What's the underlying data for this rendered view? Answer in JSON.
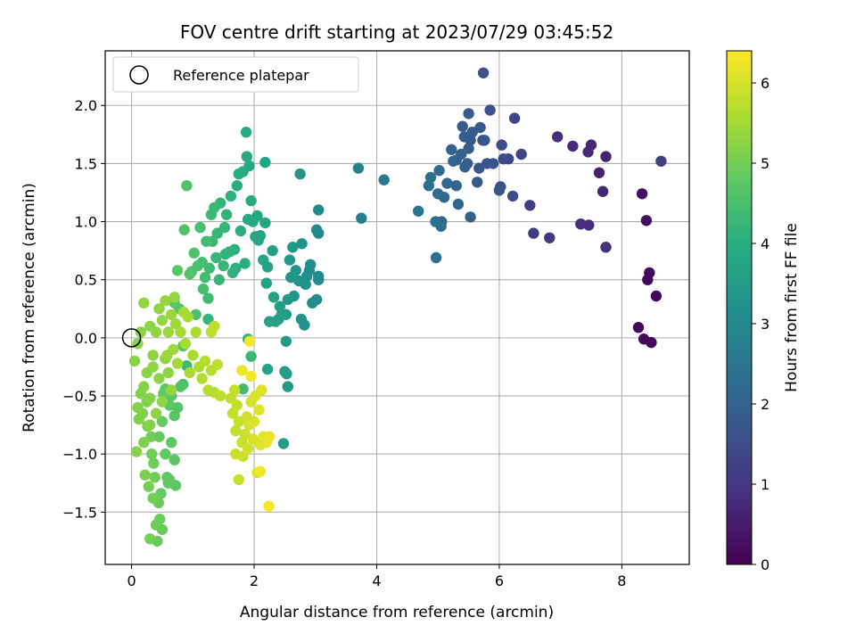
{
  "chart_data": {
    "type": "scatter",
    "title": "FOV centre drift starting at 2023/07/29 03:45:52",
    "xlabel": "Angular distance from reference (arcmin)",
    "ylabel": "Rotation from reference (arcmin)",
    "xlim": [
      -0.43,
      9.1
    ],
    "ylim": [
      -1.95,
      2.47
    ],
    "xticks": [
      0,
      2,
      4,
      6,
      8
    ],
    "yticks": [
      -1.5,
      -1.0,
      -0.5,
      0.0,
      0.5,
      1.0,
      1.5,
      2.0
    ],
    "xtick_labels": [
      "0",
      "2",
      "4",
      "6",
      "8"
    ],
    "ytick_labels": [
      "−1.5",
      "−1.0",
      "−0.5",
      "0.0",
      "0.5",
      "1.0",
      "1.5",
      "2.0"
    ],
    "grid": true,
    "legend": {
      "placement": "top-left",
      "entries": [
        "Reference platepar"
      ]
    },
    "reference_point": {
      "x": 0.0,
      "y": 0.0
    },
    "colorbar": {
      "label": "Hours from first FF file",
      "range": [
        0,
        6.4
      ],
      "ticks": [
        0,
        1,
        2,
        3,
        4,
        5,
        6
      ],
      "tick_labels": [
        "0",
        "1",
        "2",
        "3",
        "4",
        "5",
        "6"
      ],
      "colormap": "viridis"
    },
    "points": [
      [
        8.64,
        1.52,
        1.25
      ],
      [
        8.48,
        -0.04,
        0.1
      ],
      [
        8.56,
        0.36,
        0.1
      ],
      [
        8.36,
        -0.01,
        0.1
      ],
      [
        8.27,
        0.09,
        0.15
      ],
      [
        8.45,
        0.56,
        0.15
      ],
      [
        8.42,
        0.5,
        0.15
      ],
      [
        8.4,
        1.01,
        0.25
      ],
      [
        8.33,
        1.24,
        0.3
      ],
      [
        7.74,
        1.56,
        0.6
      ],
      [
        7.69,
        1.26,
        0.65
      ],
      [
        7.63,
        1.42,
        0.6
      ],
      [
        7.5,
        1.66,
        0.7
      ],
      [
        7.45,
        1.6,
        0.75
      ],
      [
        7.46,
        0.97,
        0.8
      ],
      [
        7.33,
        0.98,
        0.85
      ],
      [
        7.2,
        1.65,
        0.75
      ],
      [
        6.95,
        1.73,
        0.8
      ],
      [
        7.74,
        0.78,
        0.9
      ],
      [
        6.82,
        0.86,
        1.0
      ],
      [
        6.56,
        0.9,
        1.1
      ],
      [
        6.5,
        1.14,
        1.2
      ],
      [
        6.36,
        1.58,
        1.3
      ],
      [
        6.25,
        1.89,
        1.35
      ],
      [
        6.15,
        1.54,
        1.4
      ],
      [
        6.07,
        1.54,
        1.45
      ],
      [
        6.04,
        1.66,
        1.5
      ],
      [
        6.02,
        1.3,
        1.6
      ],
      [
        6.22,
        1.22,
        1.5
      ],
      [
        5.85,
        1.96,
        1.55
      ],
      [
        5.8,
        1.5,
        1.6
      ],
      [
        5.73,
        1.7,
        1.65
      ],
      [
        5.74,
        2.28,
        1.6
      ],
      [
        5.67,
        1.46,
        1.7
      ],
      [
        5.64,
        1.34,
        1.75
      ],
      [
        5.69,
        1.81,
        1.75
      ],
      [
        5.76,
        1.7,
        1.7
      ],
      [
        5.9,
        1.5,
        1.7
      ],
      [
        6.0,
        1.27,
        1.7
      ],
      [
        5.56,
        1.77,
        1.8
      ],
      [
        5.5,
        1.93,
        1.8
      ],
      [
        5.53,
        1.7,
        1.8
      ],
      [
        5.5,
        1.63,
        1.85
      ],
      [
        5.4,
        1.82,
        1.85
      ],
      [
        5.48,
        1.5,
        1.9
      ],
      [
        5.43,
        1.73,
        1.9
      ],
      [
        5.44,
        1.47,
        1.95
      ],
      [
        5.38,
        1.58,
        1.95
      ],
      [
        5.53,
        1.04,
        1.95
      ],
      [
        5.3,
        1.53,
        2.0
      ],
      [
        5.25,
        1.52,
        2.05
      ],
      [
        5.3,
        1.31,
        2.05
      ],
      [
        5.22,
        1.62,
        2.05
      ],
      [
        5.33,
        1.15,
        2.1
      ],
      [
        5.15,
        1.33,
        2.1
      ],
      [
        5.06,
        1.0,
        2.15
      ],
      [
        5.1,
        1.21,
        2.15
      ],
      [
        5.05,
        0.96,
        2.2
      ],
      [
        5.0,
        1.24,
        2.2
      ],
      [
        5.02,
        1.44,
        2.25
      ],
      [
        4.96,
        1.0,
        2.3
      ],
      [
        4.88,
        1.38,
        2.35
      ],
      [
        4.85,
        1.31,
        2.35
      ],
      [
        4.97,
        0.69,
        2.4
      ],
      [
        4.68,
        1.09,
        2.45
      ],
      [
        4.12,
        1.36,
        2.6
      ],
      [
        3.75,
        1.03,
        2.7
      ],
      [
        3.7,
        1.46,
        2.75
      ],
      [
        3.05,
        1.1,
        3.0
      ],
      [
        3.02,
        0.93,
        3.05
      ],
      [
        3.05,
        0.9,
        3.0
      ],
      [
        3.05,
        0.5,
        3.05
      ],
      [
        3.05,
        0.53,
        3.05
      ],
      [
        3.02,
        0.33,
        3.1
      ],
      [
        2.95,
        0.3,
        3.1
      ],
      [
        2.92,
        0.63,
        3.15
      ],
      [
        2.9,
        0.58,
        3.1
      ],
      [
        2.86,
        0.53,
        3.2
      ],
      [
        2.84,
        0.46,
        3.25
      ],
      [
        2.82,
        0.11,
        3.2
      ],
      [
        2.77,
        0.16,
        3.3
      ],
      [
        2.73,
        0.49,
        3.3
      ],
      [
        2.68,
        0.58,
        3.35
      ],
      [
        2.65,
        0.36,
        3.35
      ],
      [
        2.6,
        0.52,
        3.35
      ],
      [
        2.78,
        0.81,
        3.3
      ],
      [
        2.75,
        1.41,
        3.35
      ],
      [
        2.63,
        0.78,
        3.4
      ],
      [
        2.58,
        0.67,
        3.4
      ],
      [
        2.55,
        0.33,
        3.45
      ],
      [
        2.52,
        0.2,
        3.45
      ],
      [
        2.55,
        -0.42,
        3.45
      ],
      [
        2.53,
        -0.31,
        3.5
      ],
      [
        2.5,
        -0.29,
        3.5
      ],
      [
        2.52,
        -0.03,
        3.45
      ],
      [
        2.48,
        -0.91,
        3.5
      ],
      [
        2.45,
        0.2,
        3.55
      ],
      [
        2.42,
        0.27,
        3.55
      ],
      [
        2.4,
        0.16,
        3.6
      ],
      [
        2.35,
        0.14,
        3.6
      ],
      [
        2.32,
        0.35,
        3.65
      ],
      [
        2.3,
        0.75,
        3.6
      ],
      [
        2.25,
        0.14,
        3.65
      ],
      [
        2.22,
        0.61,
        3.65
      ],
      [
        2.22,
        -0.27,
        3.7
      ],
      [
        2.2,
        0.47,
        3.7
      ],
      [
        2.18,
        1.51,
        3.7
      ],
      [
        2.18,
        0.99,
        3.75
      ],
      [
        2.15,
        0.67,
        3.75
      ],
      [
        2.1,
        0.88,
        3.75
      ],
      [
        2.07,
        0.84,
        3.8
      ],
      [
        2.05,
        1.05,
        3.8
      ],
      [
        2.02,
        0.87,
        3.8
      ],
      [
        1.98,
        1.0,
        3.85
      ],
      [
        1.95,
        1.18,
        3.85
      ],
      [
        1.92,
        1.48,
        3.9
      ],
      [
        1.9,
        1.02,
        3.9
      ],
      [
        1.88,
        1.56,
        3.9
      ],
      [
        1.87,
        1.77,
        3.9
      ],
      [
        1.85,
        0.64,
        3.95
      ],
      [
        1.82,
        1.43,
        3.95
      ],
      [
        1.78,
        0.92,
        4.0
      ],
      [
        1.75,
        1.41,
        4.0
      ],
      [
        1.72,
        1.31,
        4.0
      ],
      [
        1.7,
        0.6,
        4.05
      ],
      [
        1.68,
        0.76,
        4.05
      ],
      [
        1.65,
        0.56,
        4.1
      ],
      [
        1.62,
        1.22,
        4.1
      ],
      [
        1.6,
        0.74,
        4.1
      ],
      [
        1.55,
        1.06,
        4.15
      ],
      [
        1.53,
        0.72,
        4.15
      ],
      [
        1.52,
        0.95,
        4.2
      ],
      [
        1.5,
        0.62,
        4.2
      ],
      [
        1.45,
        1.16,
        4.2
      ],
      [
        1.43,
        0.5,
        4.25
      ],
      [
        1.4,
        0.9,
        4.25
      ],
      [
        1.38,
        0.69,
        4.25
      ],
      [
        1.35,
        1.12,
        4.3
      ],
      [
        1.32,
        0.83,
        4.3
      ],
      [
        1.3,
        1.06,
        4.3
      ],
      [
        1.27,
        0.6,
        4.35
      ],
      [
        1.25,
        0.34,
        4.35
      ],
      [
        1.22,
        0.83,
        4.4
      ],
      [
        1.2,
        0.52,
        4.4
      ],
      [
        1.17,
        0.42,
        4.45
      ],
      [
        1.15,
        0.65,
        4.45
      ],
      [
        1.12,
        0.95,
        4.45
      ],
      [
        1.08,
        0.62,
        4.5
      ],
      [
        1.05,
        0.2,
        4.5
      ],
      [
        1.02,
        0.73,
        4.55
      ],
      [
        0.98,
        0.57,
        4.55
      ],
      [
        0.95,
        0.55,
        4.6
      ],
      [
        0.9,
        1.31,
        4.6
      ],
      [
        0.86,
        0.93,
        4.6
      ],
      [
        0.84,
        -0.07,
        4.65
      ],
      [
        0.78,
        0.25,
        4.65
      ],
      [
        0.75,
        0.58,
        4.7
      ],
      [
        0.7,
        0.3,
        4.7
      ],
      [
        1.95,
        -0.16,
        4.3
      ],
      [
        1.9,
        -0.01,
        4.2
      ],
      [
        1.82,
        -0.44,
        4.4
      ],
      [
        1.25,
        0.16,
        4.2
      ],
      [
        0.9,
        -0.24,
        4.35
      ],
      [
        0.84,
        -0.4,
        4.5
      ],
      [
        0.8,
        -0.42,
        4.6
      ],
      [
        0.75,
        -0.6,
        4.65
      ],
      [
        0.7,
        -0.67,
        4.7
      ],
      [
        0.65,
        -0.5,
        4.7
      ],
      [
        0.62,
        -0.58,
        4.75
      ],
      [
        0.6,
        -1.25,
        4.8
      ],
      [
        0.58,
        -1.2,
        4.8
      ],
      [
        0.55,
        -0.44,
        4.8
      ],
      [
        0.52,
        -0.48,
        4.85
      ],
      [
        0.5,
        -0.72,
        4.85
      ],
      [
        0.48,
        -1.34,
        4.85
      ],
      [
        0.46,
        -1.56,
        4.9
      ],
      [
        0.44,
        -1.42,
        4.9
      ],
      [
        0.42,
        -1.4,
        4.9
      ],
      [
        0.4,
        -1.61,
        4.95
      ],
      [
        0.38,
        -1.2,
        4.95
      ],
      [
        0.36,
        -1.08,
        4.95
      ],
      [
        0.35,
        -1.38,
        5.0
      ],
      [
        0.33,
        -1.0,
        5.0
      ],
      [
        0.32,
        -0.85,
        5.0
      ],
      [
        0.3,
        -1.73,
        5.05
      ],
      [
        0.28,
        -1.28,
        5.05
      ],
      [
        0.26,
        -0.76,
        5.05
      ],
      [
        0.25,
        -0.55,
        5.1
      ],
      [
        0.22,
        -1.18,
        5.1
      ],
      [
        0.2,
        -0.9,
        5.1
      ],
      [
        0.18,
        -0.65,
        5.15
      ],
      [
        0.15,
        -0.48,
        5.15
      ],
      [
        0.12,
        -0.7,
        5.15
      ],
      [
        0.1,
        -0.6,
        5.2
      ],
      [
        0.08,
        -0.98,
        5.2
      ],
      [
        0.05,
        -0.2,
        5.2
      ],
      [
        0.42,
        -1.75,
        4.9
      ],
      [
        0.5,
        -1.65,
        4.9
      ],
      [
        0.65,
        -0.9,
        4.8
      ],
      [
        0.7,
        -1.05,
        4.75
      ],
      [
        0.55,
        -1.0,
        4.8
      ],
      [
        0.45,
        -0.85,
        4.85
      ],
      [
        0.62,
        -1.22,
        4.8
      ],
      [
        0.72,
        -1.27,
        4.75
      ],
      [
        0.3,
        -0.52,
        5.15
      ],
      [
        0.2,
        -0.42,
        5.2
      ],
      [
        0.25,
        -0.3,
        5.25
      ],
      [
        0.35,
        -0.15,
        5.25
      ],
      [
        0.4,
        0.05,
        5.3
      ],
      [
        0.45,
        0.25,
        5.3
      ],
      [
        0.5,
        0.15,
        5.35
      ],
      [
        0.55,
        0.32,
        5.35
      ],
      [
        0.6,
        0.05,
        5.4
      ],
      [
        0.65,
        0.2,
        5.4
      ],
      [
        0.68,
        -0.1,
        5.45
      ],
      [
        0.72,
        0.12,
        5.45
      ],
      [
        0.75,
        -0.22,
        5.5
      ],
      [
        0.8,
        0.05,
        5.5
      ],
      [
        0.85,
        0.22,
        5.5
      ],
      [
        0.88,
        -0.05,
        5.55
      ],
      [
        0.92,
        0.18,
        5.55
      ],
      [
        0.95,
        -0.3,
        5.55
      ],
      [
        1.0,
        -0.15,
        5.6
      ],
      [
        1.05,
        0.05,
        5.6
      ],
      [
        1.1,
        -0.25,
        5.6
      ],
      [
        1.15,
        -0.35,
        5.65
      ],
      [
        1.2,
        -0.2,
        5.65
      ],
      [
        1.25,
        -0.45,
        5.7
      ],
      [
        1.3,
        -0.28,
        5.7
      ],
      [
        1.35,
        -0.47,
        5.7
      ],
      [
        1.4,
        -0.23,
        5.75
      ],
      [
        1.3,
        0.05,
        5.75
      ],
      [
        1.35,
        0.1,
        5.75
      ],
      [
        1.45,
        -0.5,
        5.75
      ],
      [
        0.3,
        0.1,
        5.25
      ],
      [
        0.2,
        0.3,
        5.3
      ],
      [
        0.15,
        0.05,
        5.25
      ],
      [
        0.1,
        -0.05,
        5.25
      ],
      [
        0.35,
        -0.25,
        5.3
      ],
      [
        0.45,
        -0.35,
        5.25
      ],
      [
        0.55,
        -0.18,
        5.3
      ],
      [
        0.6,
        -0.3,
        5.3
      ],
      [
        0.65,
        -0.45,
        5.35
      ],
      [
        0.5,
        -0.55,
        5.3
      ],
      [
        0.4,
        -0.65,
        5.25
      ],
      [
        0.3,
        -0.75,
        5.2
      ],
      [
        0.58,
        -0.15,
        5.4
      ],
      [
        0.7,
        0.35,
        5.35
      ],
      [
        1.62,
        -0.52,
        5.75
      ],
      [
        1.65,
        -0.65,
        5.8
      ],
      [
        1.7,
        -0.8,
        5.8
      ],
      [
        1.72,
        -0.58,
        5.85
      ],
      [
        1.75,
        -0.72,
        5.85
      ],
      [
        1.8,
        -0.9,
        5.9
      ],
      [
        1.82,
        -1.02,
        5.9
      ],
      [
        1.85,
        -0.83,
        5.9
      ],
      [
        1.88,
        -0.68,
        5.95
      ],
      [
        1.9,
        -0.95,
        5.95
      ],
      [
        1.92,
        -0.75,
        6.0
      ],
      [
        1.95,
        -0.55,
        6.0
      ],
      [
        1.98,
        -0.87,
        6.0
      ],
      [
        2.0,
        -0.72,
        6.05
      ],
      [
        2.02,
        -0.5,
        6.05
      ],
      [
        2.05,
        -1.16,
        6.05
      ],
      [
        2.08,
        -0.62,
        6.1
      ],
      [
        2.1,
        -0.92,
        6.1
      ],
      [
        2.12,
        -0.45,
        6.1
      ],
      [
        2.15,
        -0.85,
        6.15
      ],
      [
        2.2,
        -0.9,
        6.15
      ],
      [
        2.25,
        -0.85,
        6.2
      ],
      [
        2.24,
        -1.45,
        6.35
      ],
      [
        2.1,
        -1.15,
        6.3
      ],
      [
        1.95,
        -0.33,
        6.3
      ],
      [
        1.93,
        -0.03,
        6.3
      ],
      [
        1.8,
        -0.28,
        6.25
      ],
      [
        1.75,
        -1.22,
        5.85
      ],
      [
        1.7,
        -1.0,
        5.9
      ],
      [
        1.68,
        -0.45,
        5.85
      ]
    ]
  }
}
